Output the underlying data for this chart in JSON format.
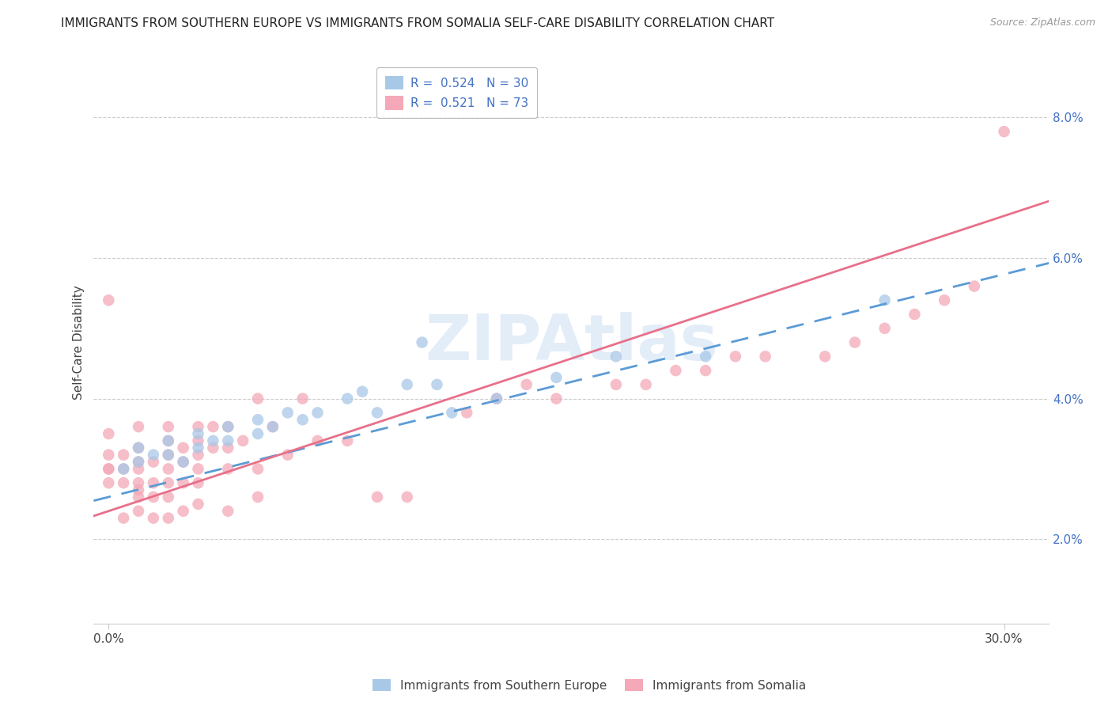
{
  "title": "IMMIGRANTS FROM SOUTHERN EUROPE VS IMMIGRANTS FROM SOMALIA SELF-CARE DISABILITY CORRELATION CHART",
  "source": "Source: ZipAtlas.com",
  "ylabel": "Self-Care Disability",
  "x_tick_positions": [
    0.0,
    0.3
  ],
  "x_tick_labels": [
    "0.0%",
    "30.0%"
  ],
  "y_ticks": [
    0.02,
    0.04,
    0.06,
    0.08
  ],
  "y_tick_labels": [
    "2.0%",
    "4.0%",
    "6.0%",
    "8.0%"
  ],
  "xlim": [
    -0.005,
    0.315
  ],
  "ylim": [
    0.008,
    0.088
  ],
  "R_blue": 0.524,
  "N_blue": 30,
  "R_pink": 0.521,
  "N_pink": 73,
  "blue_color": "#A8C8E8",
  "pink_color": "#F4A8B8",
  "blue_line_color": "#5B9BD5",
  "pink_line_color": "#E8708A",
  "legend_label_blue": "Immigrants from Southern Europe",
  "legend_label_pink": "Immigrants from Somalia",
  "watermark": "ZIPAtlas",
  "blue_scatter_x": [
    0.005,
    0.01,
    0.01,
    0.015,
    0.02,
    0.02,
    0.025,
    0.03,
    0.03,
    0.035,
    0.04,
    0.04,
    0.05,
    0.05,
    0.055,
    0.06,
    0.065,
    0.07,
    0.08,
    0.085,
    0.09,
    0.1,
    0.105,
    0.11,
    0.115,
    0.13,
    0.15,
    0.17,
    0.2,
    0.26
  ],
  "blue_scatter_y": [
    0.03,
    0.031,
    0.033,
    0.032,
    0.032,
    0.034,
    0.031,
    0.033,
    0.035,
    0.034,
    0.034,
    0.036,
    0.035,
    0.037,
    0.036,
    0.038,
    0.037,
    0.038,
    0.04,
    0.041,
    0.038,
    0.042,
    0.048,
    0.042,
    0.038,
    0.04,
    0.043,
    0.046,
    0.046,
    0.054
  ],
  "pink_scatter_x": [
    0.0,
    0.0,
    0.0,
    0.0,
    0.0,
    0.0,
    0.005,
    0.005,
    0.005,
    0.01,
    0.01,
    0.01,
    0.01,
    0.01,
    0.01,
    0.01,
    0.015,
    0.015,
    0.015,
    0.02,
    0.02,
    0.02,
    0.02,
    0.02,
    0.02,
    0.025,
    0.025,
    0.025,
    0.03,
    0.03,
    0.03,
    0.03,
    0.03,
    0.035,
    0.035,
    0.04,
    0.04,
    0.04,
    0.045,
    0.05,
    0.05,
    0.055,
    0.06,
    0.065,
    0.07,
    0.08,
    0.09,
    0.1,
    0.12,
    0.13,
    0.14,
    0.15,
    0.17,
    0.18,
    0.19,
    0.2,
    0.21,
    0.22,
    0.24,
    0.25,
    0.26,
    0.27,
    0.28,
    0.29,
    0.005,
    0.01,
    0.015,
    0.02,
    0.025,
    0.03,
    0.04,
    0.05,
    0.3
  ],
  "pink_scatter_y": [
    0.028,
    0.03,
    0.032,
    0.035,
    0.054,
    0.03,
    0.028,
    0.03,
    0.032,
    0.026,
    0.027,
    0.028,
    0.03,
    0.031,
    0.033,
    0.036,
    0.026,
    0.028,
    0.031,
    0.026,
    0.028,
    0.03,
    0.032,
    0.034,
    0.036,
    0.028,
    0.031,
    0.033,
    0.028,
    0.03,
    0.032,
    0.034,
    0.036,
    0.033,
    0.036,
    0.03,
    0.033,
    0.036,
    0.034,
    0.03,
    0.04,
    0.036,
    0.032,
    0.04,
    0.034,
    0.034,
    0.026,
    0.026,
    0.038,
    0.04,
    0.042,
    0.04,
    0.042,
    0.042,
    0.044,
    0.044,
    0.046,
    0.046,
    0.046,
    0.048,
    0.05,
    0.052,
    0.054,
    0.056,
    0.023,
    0.024,
    0.023,
    0.023,
    0.024,
    0.025,
    0.024,
    0.026,
    0.078
  ],
  "title_fontsize": 11,
  "axis_label_fontsize": 11,
  "tick_fontsize": 11,
  "legend_fontsize": 11,
  "blue_line_x0": 0.0,
  "blue_line_y0": 0.026,
  "blue_line_x1": 0.265,
  "blue_line_y1": 0.054,
  "pink_line_x0": 0.0,
  "pink_line_y0": 0.024,
  "pink_line_x1": 0.3,
  "pink_line_y1": 0.066
}
